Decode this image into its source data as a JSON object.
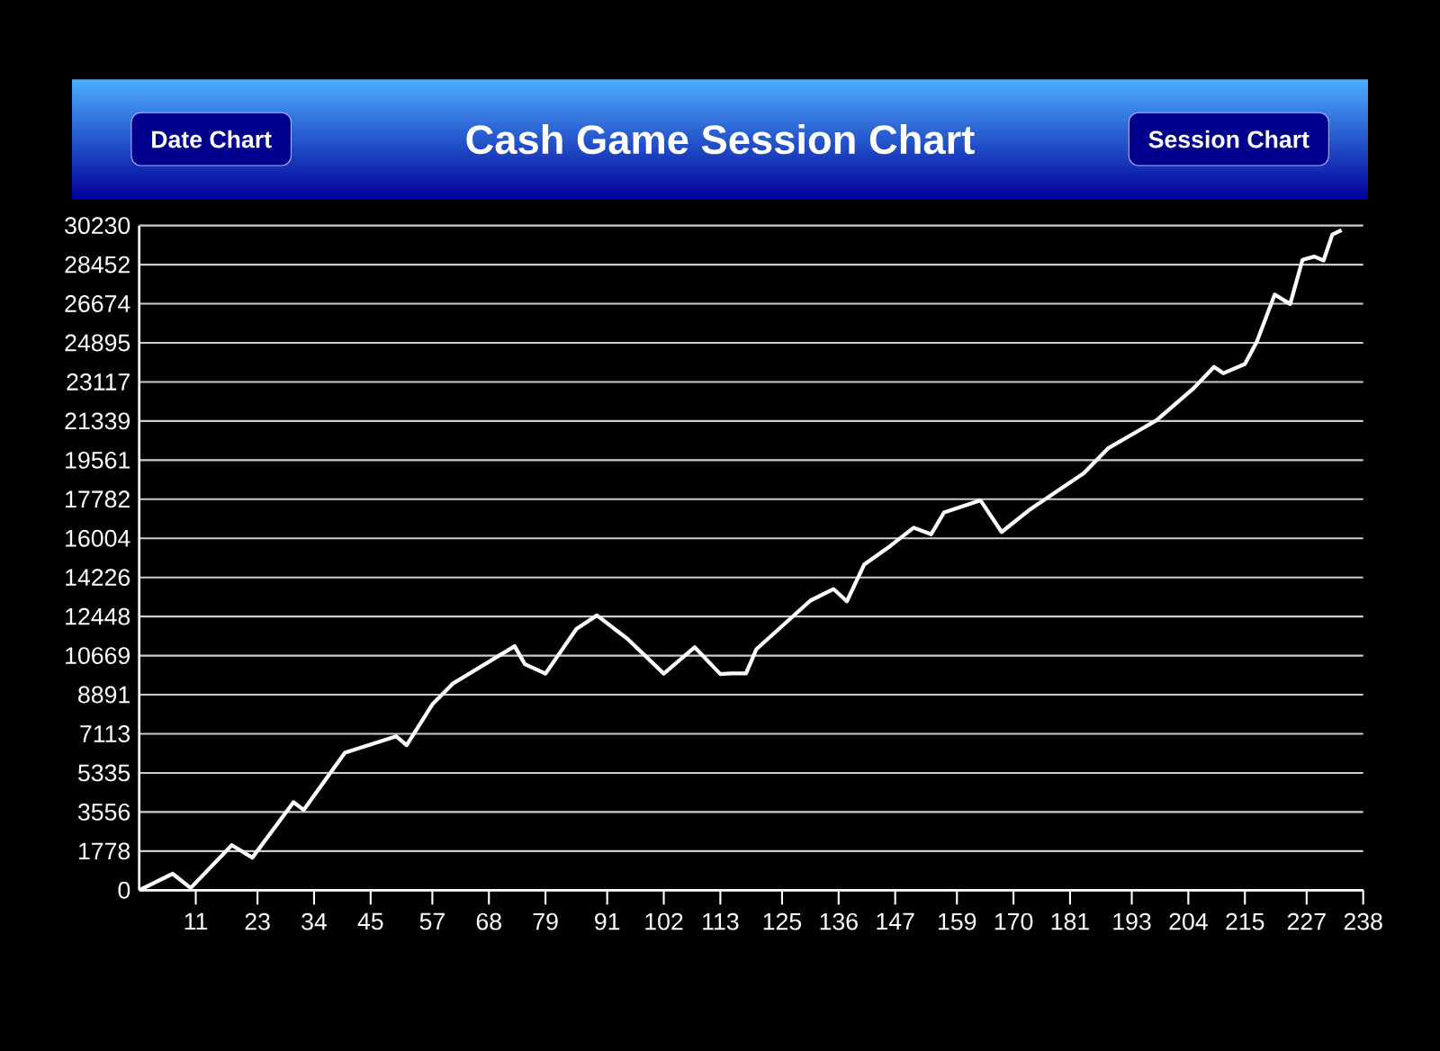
{
  "chart_data": {
    "type": "line",
    "title": "Cash Game Session Chart",
    "annotations": [
      "Date Chart",
      "Session Chart"
    ],
    "x": [
      0,
      6.5,
      10,
      18,
      22,
      30,
      32,
      40,
      50,
      52,
      57,
      61,
      73,
      75,
      79,
      85,
      89,
      95,
      102,
      108,
      113,
      115,
      118,
      120,
      130.5,
      135,
      137.6,
      141,
      146,
      150.6,
      154,
      156.5,
      163.6,
      167.7,
      173,
      183.7,
      188.4,
      197.8,
      204.9,
      209,
      210.8,
      215,
      217.3,
      220.8,
      223.8,
      226.2,
      228.5,
      230.3,
      232,
      233.8
    ],
    "series": [
      {
        "color": "#ffffff",
        "values": [
          0,
          750,
          100,
          2050,
          1480,
          4000,
          3650,
          6250,
          7000,
          6600,
          8450,
          9400,
          11100,
          10280,
          9850,
          11880,
          12500,
          11420,
          9850,
          11050,
          9830,
          9860,
          9860,
          10960,
          13170,
          13700,
          13140,
          14820,
          15650,
          16490,
          16190,
          17180,
          17730,
          16290,
          17280,
          18970,
          20100,
          21370,
          22800,
          23800,
          23510,
          23930,
          24940,
          27090,
          26660,
          28670,
          28820,
          28640,
          29820,
          30020
        ]
      }
    ],
    "xlim": [
      0,
      238
    ],
    "xticks": [
      11,
      23,
      34,
      45,
      57,
      68,
      79,
      91,
      102,
      113,
      125,
      136,
      147,
      159,
      170,
      181,
      193,
      204,
      215,
      227,
      238
    ],
    "ylim": [
      0,
      30230
    ],
    "yticks": [
      0,
      1778,
      3556,
      5335,
      7113,
      8891,
      10669,
      12448,
      14226,
      16004,
      17782,
      19561,
      21339,
      23117,
      24895,
      26674,
      28452,
      30230
    ],
    "grid": "y",
    "marker": "none",
    "line_style": "solid"
  }
}
